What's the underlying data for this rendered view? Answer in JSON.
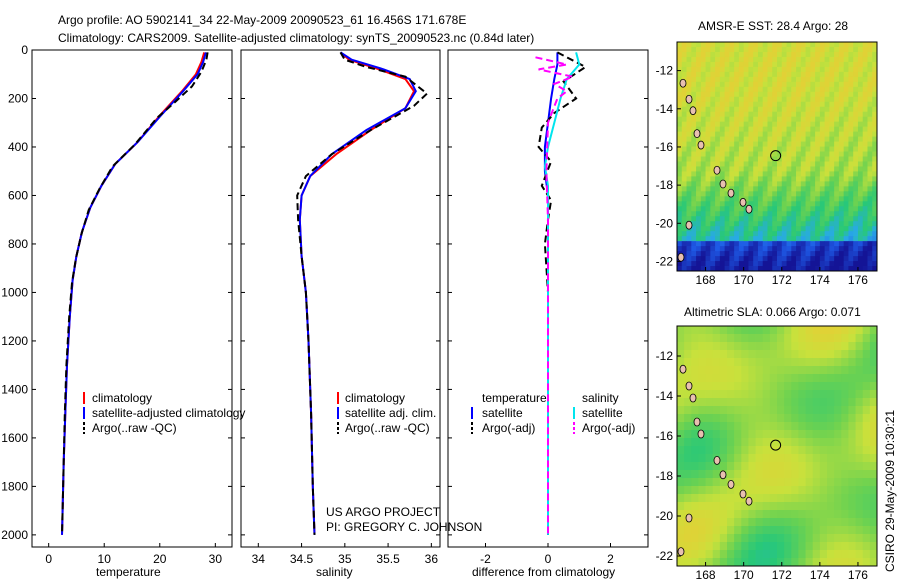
{
  "header": {
    "line1": "Argo profile: AO 5902141_34 22-May-2009 20090523_61 16.456S 171.678E",
    "line2": "Climatology: CARS2009. Satellite-adjusted climatology: synTS_20090523.nc (0.84d later)"
  },
  "colors": {
    "climatology": "#ff0000",
    "satellite": "#0000ff",
    "argo": "#000000",
    "sal_sat": "#00e5ee",
    "sal_argo": "#ff00ff"
  },
  "chart_data": [
    {
      "type": "line",
      "name": "temperature-profile",
      "xlabel": "temperature",
      "xlim": [
        -3,
        33
      ],
      "ylim": [
        0,
        2050
      ],
      "y_reversed": true,
      "xticks": [
        0,
        10,
        20,
        30
      ],
      "yticks": [
        0,
        200,
        400,
        600,
        800,
        1000,
        1200,
        1400,
        1600,
        1800,
        2000
      ],
      "series": [
        {
          "name": "climatology",
          "color": "#ff0000",
          "dash": false,
          "points": [
            [
              28.0,
              10
            ],
            [
              27.5,
              50
            ],
            [
              26.5,
              100
            ],
            [
              24,
              170
            ],
            [
              20,
              270
            ],
            [
              16,
              380
            ],
            [
              12,
              470
            ],
            [
              9.5,
              560
            ],
            [
              7.5,
              650
            ],
            [
              6,
              750
            ],
            [
              5,
              850
            ],
            [
              4.3,
              950
            ],
            [
              3.8,
              1100
            ],
            [
              3.3,
              1300
            ],
            [
              3,
              1500
            ],
            [
              2.7,
              1700
            ],
            [
              2.5,
              1900
            ],
            [
              2.4,
              2000
            ]
          ]
        },
        {
          "name": "satellite-adjusted climatology",
          "color": "#0000ff",
          "dash": false,
          "points": [
            [
              28.3,
              10
            ],
            [
              27.8,
              50
            ],
            [
              26.8,
              100
            ],
            [
              24.2,
              170
            ],
            [
              20.2,
              270
            ],
            [
              16,
              380
            ],
            [
              12,
              470
            ],
            [
              9.5,
              560
            ],
            [
              7.5,
              650
            ],
            [
              6,
              750
            ],
            [
              5,
              850
            ],
            [
              4.3,
              950
            ],
            [
              3.8,
              1100
            ],
            [
              3.3,
              1300
            ],
            [
              3,
              1500
            ],
            [
              2.7,
              1700
            ],
            [
              2.5,
              1900
            ],
            [
              2.4,
              2000
            ]
          ]
        },
        {
          "name": "Argo(..raw -QC)",
          "color": "#000000",
          "dash": true,
          "points": [
            [
              28.6,
              10
            ],
            [
              28.4,
              40
            ],
            [
              27.5,
              90
            ],
            [
              25.8,
              150
            ],
            [
              22.5,
              220
            ],
            [
              19.5,
              280
            ],
            [
              15.5,
              390
            ],
            [
              11.5,
              480
            ],
            [
              9.2,
              570
            ],
            [
              7.2,
              660
            ],
            [
              5.9,
              760
            ],
            [
              4.9,
              860
            ],
            [
              4.2,
              960
            ],
            [
              3.7,
              1100
            ],
            [
              3.2,
              1300
            ],
            [
              2.9,
              1500
            ],
            [
              2.7,
              1700
            ],
            [
              2.5,
              1900
            ],
            [
              2.4,
              2000
            ]
          ]
        }
      ],
      "legend": {
        "entries": [
          "climatology",
          "satellite-adjusted climatology",
          "Argo(..raw -QC)"
        ]
      }
    },
    {
      "type": "line",
      "name": "salinity-profile",
      "xlabel": "salinity",
      "xlim": [
        33.8,
        36.1
      ],
      "ylim": [
        0,
        2050
      ],
      "y_reversed": true,
      "xticks": [
        34,
        34.5,
        35,
        35.5,
        36
      ],
      "series": [
        {
          "name": "climatology",
          "color": "#ff0000",
          "dash": false,
          "points": [
            [
              34.95,
              10
            ],
            [
              35.05,
              40
            ],
            [
              35.4,
              80
            ],
            [
              35.7,
              120
            ],
            [
              35.8,
              170
            ],
            [
              35.7,
              240
            ],
            [
              35.3,
              330
            ],
            [
              34.9,
              430
            ],
            [
              34.6,
              520
            ],
            [
              34.5,
              600
            ],
            [
              34.48,
              700
            ],
            [
              34.5,
              850
            ],
            [
              34.55,
              1000
            ],
            [
              34.58,
              1200
            ],
            [
              34.61,
              1500
            ],
            [
              34.63,
              1800
            ],
            [
              34.65,
              2000
            ]
          ]
        },
        {
          "name": "satellite adj. clim.",
          "color": "#0000ff",
          "dash": false,
          "points": [
            [
              34.95,
              10
            ],
            [
              35.08,
              40
            ],
            [
              35.45,
              80
            ],
            [
              35.75,
              120
            ],
            [
              35.82,
              170
            ],
            [
              35.7,
              240
            ],
            [
              35.25,
              330
            ],
            [
              34.85,
              430
            ],
            [
              34.6,
              520
            ],
            [
              34.5,
              600
            ],
            [
              34.48,
              700
            ],
            [
              34.5,
              850
            ],
            [
              34.55,
              1000
            ],
            [
              34.58,
              1200
            ],
            [
              34.61,
              1500
            ],
            [
              34.63,
              1800
            ],
            [
              34.65,
              2000
            ]
          ]
        },
        {
          "name": "Argo(..raw -QC)",
          "color": "#000000",
          "dash": true,
          "points": [
            [
              34.95,
              10
            ],
            [
              35.0,
              40
            ],
            [
              35.25,
              70
            ],
            [
              35.7,
              110
            ],
            [
              35.95,
              180
            ],
            [
              35.8,
              230
            ],
            [
              35.3,
              330
            ],
            [
              34.85,
              430
            ],
            [
              34.55,
              520
            ],
            [
              34.45,
              600
            ],
            [
              34.46,
              700
            ],
            [
              34.5,
              850
            ],
            [
              34.55,
              1000
            ],
            [
              34.58,
              1200
            ],
            [
              34.61,
              1500
            ],
            [
              34.63,
              1800
            ],
            [
              34.65,
              2000
            ]
          ]
        }
      ],
      "legend": {
        "entries": [
          "climatology",
          "satellite adj. clim.",
          "Argo(..raw -QC)"
        ]
      },
      "annotation": [
        "US ARGO PROJECT",
        "PI: GREGORY C. JOHNSON"
      ]
    },
    {
      "type": "line",
      "name": "difference-profile",
      "xlabel": "difference from climatology",
      "xlim": [
        -3.2,
        3.2
      ],
      "ylim": [
        0,
        2050
      ],
      "y_reversed": true,
      "xticks": [
        -2,
        0,
        2
      ],
      "series": [
        {
          "name": "temperature satellite",
          "color": "#0000ff",
          "dash": false,
          "points": [
            [
              0.3,
              10
            ],
            [
              0.3,
              60
            ],
            [
              0.2,
              120
            ],
            [
              0.1,
              200
            ],
            [
              0.0,
              300
            ],
            [
              -0.1,
              400
            ],
            [
              -0.1,
              500
            ],
            [
              0.0,
              600
            ],
            [
              0.0,
              800
            ],
            [
              0.0,
              1200
            ],
            [
              0.0,
              2000
            ]
          ]
        },
        {
          "name": "temperature Argo(-adj)",
          "color": "#000000",
          "dash": true,
          "points": [
            [
              0.3,
              10
            ],
            [
              1.2,
              70
            ],
            [
              0.5,
              130
            ],
            [
              0.9,
              200
            ],
            [
              0.2,
              260
            ],
            [
              -0.2,
              320
            ],
            [
              -0.3,
              400
            ],
            [
              0.1,
              460
            ],
            [
              -0.2,
              560
            ],
            [
              0.1,
              620
            ],
            [
              0.0,
              700
            ],
            [
              -0.1,
              800
            ],
            [
              0.0,
              1000
            ],
            [
              0.0,
              1500
            ],
            [
              0.0,
              2000
            ]
          ]
        },
        {
          "name": "salinity satellite",
          "color": "#00e5ee",
          "dash": false,
          "points": [
            [
              0.9,
              10
            ],
            [
              1.0,
              60
            ],
            [
              0.6,
              120
            ],
            [
              0.4,
              200
            ],
            [
              0.2,
              300
            ],
            [
              0.0,
              400
            ],
            [
              -0.1,
              480
            ],
            [
              0.0,
              560
            ],
            [
              0.0,
              800
            ],
            [
              0.0,
              1200
            ],
            [
              0.0,
              2000
            ]
          ]
        },
        {
          "name": "salinity Argo(-adj)",
          "color": "#ff00ff",
          "dash": true,
          "points": [
            [
              -0.4,
              30
            ],
            [
              0.6,
              60
            ],
            [
              -0.3,
              80
            ],
            [
              0.8,
              110
            ],
            [
              0.2,
              140
            ],
            [
              0.6,
              170
            ],
            [
              0.3,
              200
            ],
            [
              0.0,
              300
            ],
            [
              -0.05,
              500
            ],
            [
              0.0,
              700
            ],
            [
              0.0,
              1000
            ],
            [
              0.0,
              2000
            ]
          ]
        }
      ],
      "legend": {
        "temperature_title": "temperature",
        "salinity_title": "salinity",
        "entries": [
          "satellite",
          "Argo(-adj)",
          "satellite",
          "Argo(-adj)"
        ]
      }
    },
    {
      "type": "heatmap",
      "name": "sst-map",
      "title": "AMSR-E SST: 28.4 Argo: 28",
      "xticks": [
        168,
        170,
        172,
        174,
        176
      ],
      "yticks": [
        -12,
        -14,
        -16,
        -18,
        -20,
        -22
      ],
      "xlim": [
        166.5,
        177
      ],
      "ylim": [
        -22.5,
        -10.5
      ],
      "marker": [
        171.678,
        -16.456
      ]
    },
    {
      "type": "heatmap",
      "name": "sla-map",
      "title": "Altimetric SLA: 0.066 Argo: 0.071",
      "xticks": [
        168,
        170,
        172,
        174,
        176
      ],
      "yticks": [
        -12,
        -14,
        -16,
        -18,
        -20,
        -22
      ],
      "xlim": [
        166.5,
        177
      ],
      "ylim": [
        -22.5,
        -10.5
      ],
      "marker": [
        171.678,
        -16.456
      ]
    }
  ],
  "legend_text": {
    "t1": "climatology",
    "t2": "satellite-adjusted climatology",
    "t3": "Argo(..raw -QC)",
    "s1": "climatology",
    "s2": "satellite adj. clim.",
    "s3": "Argo(..raw -QC)",
    "d_temp": "temperature",
    "d_sal": "salinity",
    "d1": "satellite",
    "d2": "Argo(-adj)",
    "d3": "satellite",
    "d4": "Argo(-adj)"
  },
  "credit": "CSIRO 29-May-2009 10:30:21"
}
